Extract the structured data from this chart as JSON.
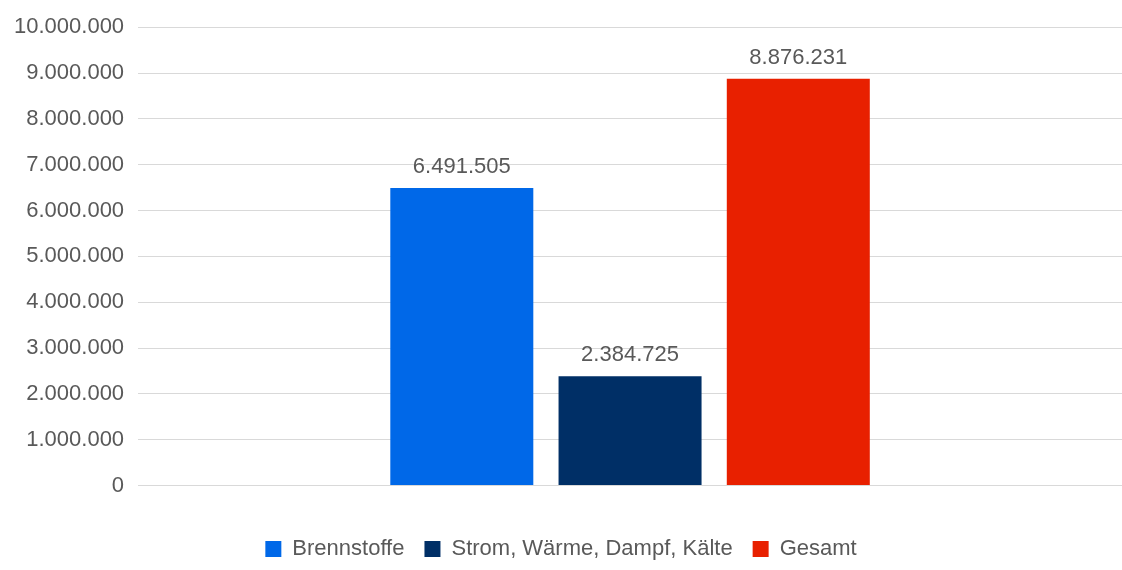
{
  "chart_data": {
    "type": "bar",
    "categories": [
      null
    ],
    "series": [
      {
        "name": "Brennstoffe",
        "color": "#0068e8",
        "values": [
          6491505
        ],
        "value_labels": [
          "6.491.505"
        ]
      },
      {
        "name": "Strom, Wärme, Dampf, Kälte",
        "color": "#002f66",
        "values": [
          2384725
        ],
        "value_labels": [
          "2.384.725"
        ]
      },
      {
        "name": "Gesamt",
        "color": "#e82000",
        "values": [
          8876231
        ],
        "value_labels": [
          "8.876.231"
        ]
      }
    ],
    "ylim": [
      0,
      10000000
    ],
    "yticks": [
      {
        "value": 0,
        "label": "0"
      },
      {
        "value": 1000000,
        "label": "1.000.000"
      },
      {
        "value": 2000000,
        "label": "2.000.000"
      },
      {
        "value": 3000000,
        "label": "3.000.000"
      },
      {
        "value": 4000000,
        "label": "4.000.000"
      },
      {
        "value": 5000000,
        "label": "5.000.000"
      },
      {
        "value": 6000000,
        "label": "6.000.000"
      },
      {
        "value": 7000000,
        "label": "7.000.000"
      },
      {
        "value": 8000000,
        "label": "8.000.000"
      },
      {
        "value": 9000000,
        "label": "9.000.000"
      },
      {
        "value": 10000000,
        "label": "10.000.000"
      }
    ],
    "grid": "y",
    "legend": "bottom"
  }
}
